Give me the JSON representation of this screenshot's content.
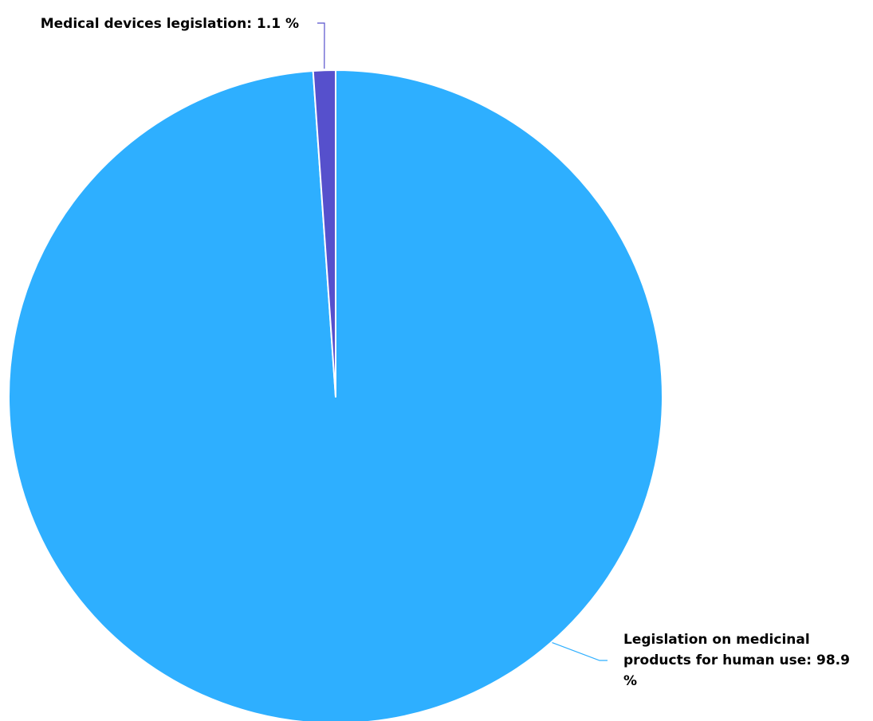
{
  "chart_data": {
    "type": "pie",
    "title": "",
    "slices": [
      {
        "name": "Medical devices legislation",
        "value": 1.1,
        "unit": "%",
        "color": "#5650cc",
        "label_lines": [
          "Medical devices legislation: 1.1 %"
        ]
      },
      {
        "name": "Legislation on medicinal products for human use",
        "value": 98.9,
        "unit": "%",
        "color": "#2eafff",
        "label_lines": [
          "Legislation on medicinal",
          "products for human use: 98.9",
          "%"
        ]
      }
    ],
    "slice_border_color": "#ffffff",
    "legend": "none"
  }
}
